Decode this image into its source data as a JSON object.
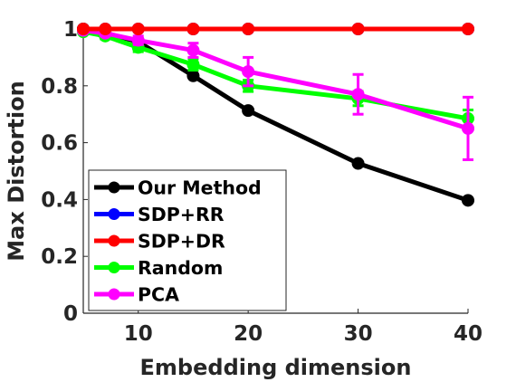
{
  "chart_data": {
    "type": "line",
    "title": "",
    "xlabel": "Embedding dimension",
    "ylabel": "Max Distortion",
    "xlim": [
      5,
      40
    ],
    "ylim": [
      0,
      1
    ],
    "xticks": [
      10,
      20,
      30,
      40
    ],
    "yticks": [
      0,
      0.2,
      0.4,
      0.6,
      0.8,
      1
    ],
    "xtick_labels": [
      "10",
      "20",
      "30",
      "40"
    ],
    "ytick_labels": [
      "0",
      "0.2",
      "0.4",
      "0.6",
      "0.8",
      "1"
    ],
    "grid": false,
    "legend_position": "bottom-left",
    "series": [
      {
        "name": "Our Method",
        "color": "#000000",
        "x": [
          5,
          7,
          10,
          15,
          20,
          30,
          40
        ],
        "y": [
          1.0,
          0.985,
          0.955,
          0.835,
          0.713,
          0.527,
          0.397
        ],
        "err": [
          0,
          0,
          0,
          0,
          0,
          0,
          0
        ]
      },
      {
        "name": "SDP+RR",
        "color": "#0000ff",
        "x": [
          5,
          7,
          10,
          15,
          20,
          30,
          40
        ],
        "y": [
          1,
          1,
          1,
          1,
          1,
          1,
          1
        ],
        "err": [
          0,
          0,
          0,
          0,
          0,
          0,
          0
        ]
      },
      {
        "name": "SDP+DR",
        "color": "#ff0000",
        "x": [
          5,
          7,
          10,
          15,
          20,
          30,
          40
        ],
        "y": [
          1,
          1,
          1,
          1,
          1,
          1,
          1
        ],
        "err": [
          0,
          0,
          0,
          0,
          0,
          0,
          0
        ]
      },
      {
        "name": "Random",
        "color": "#00ff00",
        "x": [
          5,
          7,
          10,
          15,
          20,
          30,
          40
        ],
        "y": [
          0.99,
          0.975,
          0.935,
          0.875,
          0.8,
          0.755,
          0.685
        ],
        "err": [
          0,
          0.01,
          0.015,
          0.02,
          0.02,
          0.025,
          0.03
        ]
      },
      {
        "name": "PCA",
        "color": "#ff00ff",
        "x": [
          5,
          7,
          10,
          15,
          20,
          30,
          40
        ],
        "y": [
          0.995,
          0.985,
          0.96,
          0.925,
          0.85,
          0.77,
          0.65
        ],
        "err": [
          0,
          0.01,
          0.015,
          0.025,
          0.05,
          0.07,
          0.11
        ]
      }
    ]
  }
}
